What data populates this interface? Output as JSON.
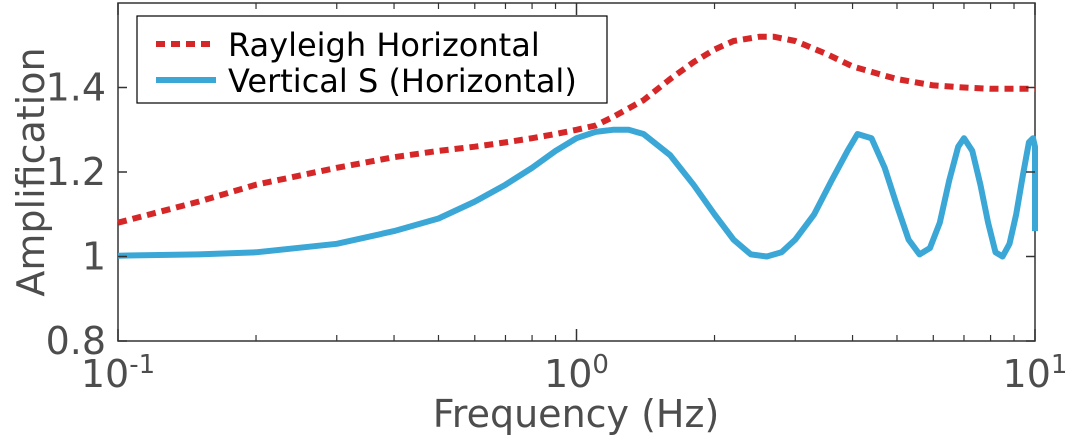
{
  "chart_data": {
    "type": "line",
    "xscale": "log",
    "xlim": [
      0.1,
      10
    ],
    "ylim": [
      0.8,
      1.6
    ],
    "grid": false,
    "legend_position": "top-left",
    "xlabel": "Frequency (Hz)",
    "ylabel": "Amplification",
    "x_ticks": [
      {
        "value": 0.1,
        "base": "10",
        "exp": "-1"
      },
      {
        "value": 1,
        "base": "10",
        "exp": "0"
      },
      {
        "value": 10,
        "base": "10",
        "exp": "1"
      }
    ],
    "y_ticks": [
      {
        "value": 0.8,
        "label": "0.8"
      },
      {
        "value": 1.0,
        "label": "1"
      },
      {
        "value": 1.2,
        "label": "1.2"
      },
      {
        "value": 1.4,
        "label": "1.4"
      }
    ],
    "series": [
      {
        "name": "Rayleigh Horizontal",
        "color": "#d62728",
        "style": "dotted",
        "points": [
          [
            0.1,
            1.08
          ],
          [
            0.15,
            1.13
          ],
          [
            0.2,
            1.17
          ],
          [
            0.3,
            1.21
          ],
          [
            0.4,
            1.235
          ],
          [
            0.5,
            1.25
          ],
          [
            0.6,
            1.26
          ],
          [
            0.7,
            1.27
          ],
          [
            0.8,
            1.28
          ],
          [
            0.9,
            1.29
          ],
          [
            1.0,
            1.3
          ],
          [
            1.1,
            1.31
          ],
          [
            1.2,
            1.33
          ],
          [
            1.4,
            1.37
          ],
          [
            1.6,
            1.42
          ],
          [
            1.8,
            1.46
          ],
          [
            2.0,
            1.49
          ],
          [
            2.2,
            1.51
          ],
          [
            2.5,
            1.52
          ],
          [
            2.7,
            1.52
          ],
          [
            3.0,
            1.51
          ],
          [
            3.5,
            1.48
          ],
          [
            4.0,
            1.45
          ],
          [
            5.0,
            1.42
          ],
          [
            6.0,
            1.405
          ],
          [
            7.0,
            1.4
          ],
          [
            8.0,
            1.397
          ],
          [
            10.0,
            1.397
          ]
        ]
      },
      {
        "name": "Vertical S (Horizontal)",
        "color": "#3ba7d6",
        "style": "solid",
        "points": [
          [
            0.1,
            1.002
          ],
          [
            0.15,
            1.005
          ],
          [
            0.2,
            1.01
          ],
          [
            0.3,
            1.03
          ],
          [
            0.4,
            1.06
          ],
          [
            0.5,
            1.09
          ],
          [
            0.6,
            1.13
          ],
          [
            0.7,
            1.17
          ],
          [
            0.8,
            1.21
          ],
          [
            0.9,
            1.25
          ],
          [
            1.0,
            1.28
          ],
          [
            1.1,
            1.295
          ],
          [
            1.2,
            1.3
          ],
          [
            1.3,
            1.3
          ],
          [
            1.4,
            1.29
          ],
          [
            1.6,
            1.24
          ],
          [
            1.8,
            1.17
          ],
          [
            2.0,
            1.1
          ],
          [
            2.2,
            1.04
          ],
          [
            2.4,
            1.005
          ],
          [
            2.6,
            1.0
          ],
          [
            2.8,
            1.01
          ],
          [
            3.0,
            1.04
          ],
          [
            3.3,
            1.1
          ],
          [
            3.6,
            1.18
          ],
          [
            3.9,
            1.25
          ],
          [
            4.1,
            1.29
          ],
          [
            4.4,
            1.28
          ],
          [
            4.7,
            1.21
          ],
          [
            5.0,
            1.12
          ],
          [
            5.3,
            1.04
          ],
          [
            5.6,
            1.005
          ],
          [
            5.9,
            1.02
          ],
          [
            6.2,
            1.08
          ],
          [
            6.5,
            1.18
          ],
          [
            6.8,
            1.26
          ],
          [
            7.0,
            1.28
          ],
          [
            7.3,
            1.25
          ],
          [
            7.6,
            1.17
          ],
          [
            7.9,
            1.08
          ],
          [
            8.2,
            1.01
          ],
          [
            8.5,
            1.0
          ],
          [
            8.8,
            1.03
          ],
          [
            9.1,
            1.1
          ],
          [
            9.4,
            1.19
          ],
          [
            9.7,
            1.27
          ],
          [
            9.9,
            1.28
          ],
          [
            10.0,
            1.26
          ],
          [
            10.2,
            1.12
          ],
          [
            10.4,
            1.06
          ]
        ]
      }
    ]
  }
}
